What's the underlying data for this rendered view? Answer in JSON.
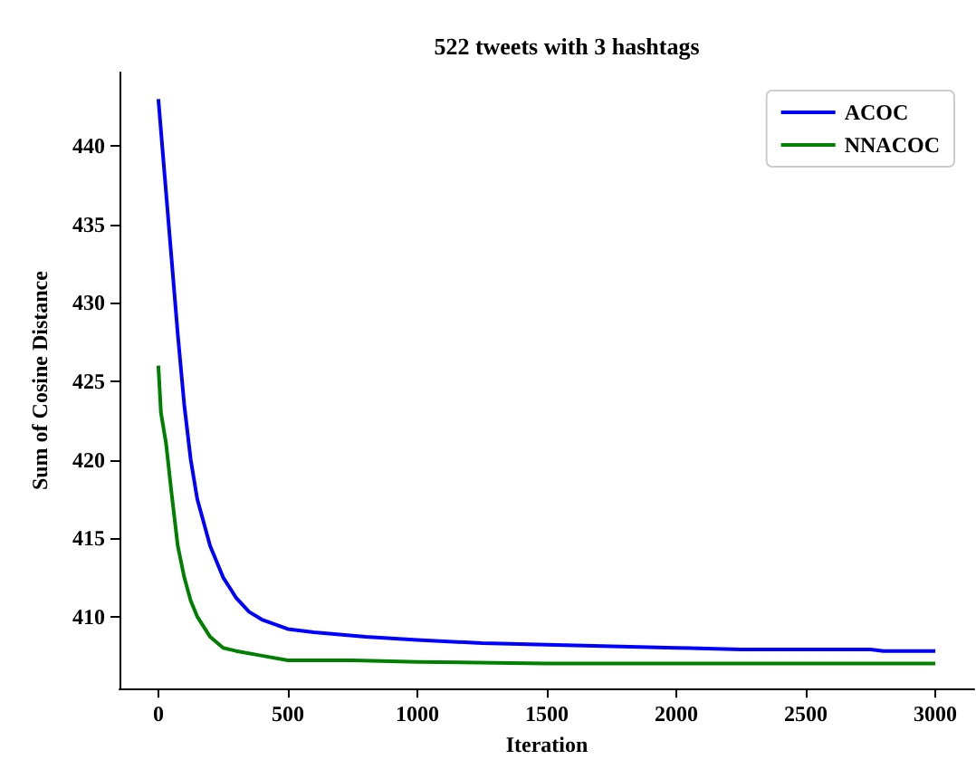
{
  "chart_data": {
    "type": "line",
    "title": "522 tweets with 3 hashtags",
    "xlabel": "Iteration",
    "ylabel": "Sum of Cosine Distance",
    "xlim": [
      -150,
      3150
    ],
    "xticks": [
      0,
      500,
      1000,
      1500,
      2000,
      2500,
      3000
    ],
    "ylim": [
      405.4,
      444.7
    ],
    "yticks": [
      410,
      415,
      420,
      425,
      430,
      435,
      440
    ],
    "grid": false,
    "legend": "top right",
    "marker": "none",
    "line_style": "solid",
    "series": [
      {
        "name": "ACOC",
        "color": "#0000ff",
        "x": [
          0,
          25,
          50,
          75,
          100,
          125,
          150,
          200,
          250,
          300,
          350,
          400,
          500,
          600,
          800,
          1000,
          1250,
          1500,
          1750,
          2000,
          2250,
          2500,
          2750,
          2800,
          3000
        ],
        "values": [
          443,
          438,
          433,
          428,
          423.5,
          420,
          417.5,
          414.5,
          412.5,
          411.2,
          410.3,
          409.8,
          409.2,
          409,
          408.7,
          408.5,
          408.3,
          408.2,
          408.1,
          408,
          407.9,
          407.9,
          407.9,
          407.8,
          407.8
        ]
      },
      {
        "name": "NNACOC",
        "color": "#008000",
        "x": [
          0,
          10,
          30,
          50,
          75,
          100,
          125,
          150,
          200,
          250,
          300,
          400,
          500,
          750,
          1000,
          1500,
          2000,
          3000
        ],
        "values": [
          426,
          423,
          421,
          418,
          414.5,
          412.5,
          411,
          410,
          408.7,
          408,
          407.8,
          407.5,
          407.2,
          407.2,
          407.1,
          407,
          407,
          407
        ]
      }
    ]
  }
}
